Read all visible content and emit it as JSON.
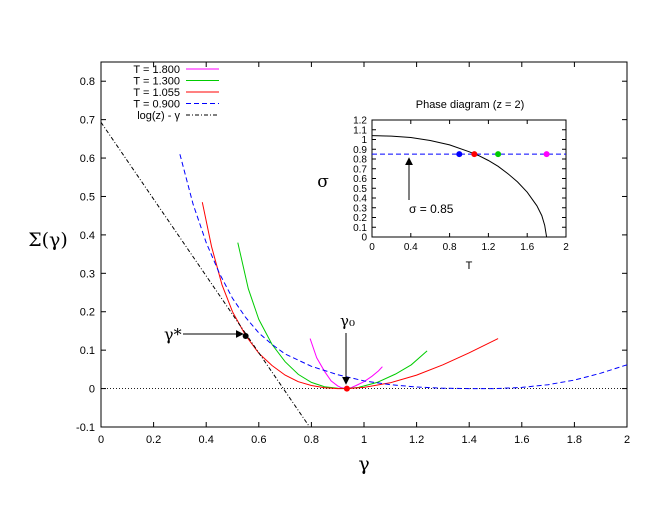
{
  "chart_data": [
    {
      "type": "line",
      "title": "",
      "xlabel": "γ",
      "ylabel": "Σ(γ)",
      "xlim": [
        0,
        2
      ],
      "ylim": [
        -0.1,
        0.85
      ],
      "x_ticks": [
        "0",
        "0.2",
        "0.4",
        "0.6",
        "0.8",
        "1",
        "1.2",
        "1.4",
        "1.6",
        "1.8",
        "2"
      ],
      "y_ticks": [
        "-0.1",
        "0",
        "0.1",
        "0.2",
        "0.3",
        "0.4",
        "0.5",
        "0.6",
        "0.7",
        "0.8"
      ],
      "legend_position": "top-left",
      "series": [
        {
          "name": "T = 1.800",
          "color": "#ff00ff",
          "style": "solid",
          "x": [
            0.795,
            0.82,
            0.85,
            0.875,
            0.9,
            0.915,
            0.935,
            0.95,
            0.97,
            1.0,
            1.03,
            1.055,
            1.07
          ],
          "y": [
            0.13,
            0.08,
            0.045,
            0.02,
            0.007,
            0.002,
            0.0,
            0.002,
            0.008,
            0.018,
            0.032,
            0.046,
            0.057
          ]
        },
        {
          "name": "T = 1.300",
          "color": "#00cc00",
          "style": "solid",
          "x": [
            0.52,
            0.56,
            0.6,
            0.65,
            0.7,
            0.75,
            0.8,
            0.85,
            0.9,
            0.935,
            0.98,
            1.05,
            1.12,
            1.18,
            1.24
          ],
          "y": [
            0.38,
            0.26,
            0.18,
            0.115,
            0.07,
            0.037,
            0.016,
            0.005,
            0.001,
            0.0,
            0.003,
            0.016,
            0.038,
            0.062,
            0.098
          ]
        },
        {
          "name": "T = 1.055",
          "color": "#ff0000",
          "style": "solid",
          "x": [
            0.385,
            0.42,
            0.46,
            0.5,
            0.55,
            0.6,
            0.65,
            0.7,
            0.75,
            0.8,
            0.85,
            0.9,
            0.935,
            1.0,
            1.1,
            1.2,
            1.3,
            1.4,
            1.51
          ],
          "y": [
            0.485,
            0.37,
            0.27,
            0.2,
            0.138,
            0.092,
            0.06,
            0.035,
            0.018,
            0.008,
            0.002,
            0.0,
            0.0,
            0.003,
            0.015,
            0.035,
            0.062,
            0.093,
            0.13
          ]
        },
        {
          "name": "T = 0.900",
          "color": "#0000ff",
          "style": "dashed",
          "x": [
            0.3,
            0.35,
            0.4,
            0.45,
            0.5,
            0.55,
            0.6,
            0.65,
            0.7,
            0.8,
            0.9,
            1.0,
            1.1,
            1.2,
            1.3,
            1.4,
            1.5,
            1.6,
            1.7,
            1.8,
            1.9,
            2.0
          ],
          "y": [
            0.61,
            0.48,
            0.38,
            0.3,
            0.235,
            0.185,
            0.145,
            0.115,
            0.09,
            0.058,
            0.036,
            0.02,
            0.01,
            0.004,
            0.001,
            0.0,
            0.0,
            0.003,
            0.01,
            0.022,
            0.04,
            0.062
          ]
        },
        {
          "name": "log(z) - γ",
          "color": "#000000",
          "style": "dash-dot",
          "x": [
            0.0,
            0.79
          ],
          "y": [
            0.693,
            -0.097
          ]
        }
      ],
      "reference_lines": [
        {
          "y": 0,
          "color": "#000000",
          "style": "dotted"
        }
      ],
      "points": [
        {
          "label": "γ*",
          "x": 0.55,
          "y": 0.137,
          "color": "#000000"
        },
        {
          "label": "γ₀",
          "x": 0.935,
          "y": 0.0,
          "color": "#ff0000"
        }
      ],
      "annotations": [
        "γ*",
        "γ₀"
      ]
    },
    {
      "type": "line",
      "title": "Phase diagram (z = 2)",
      "xlabel": "T",
      "ylabel": "σ",
      "xlim": [
        0,
        2
      ],
      "ylim": [
        0,
        1.2
      ],
      "x_ticks": [
        "0",
        "0.4",
        "0.8",
        "1.2",
        "1.6",
        "2"
      ],
      "y_ticks": [
        "0",
        "0.1",
        "0.2",
        "0.3",
        "0.4",
        "0.5",
        "0.6",
        "0.7",
        "0.8",
        "0.9",
        "1",
        "1.1",
        "1.2"
      ],
      "series": [
        {
          "name": "",
          "color": "#000000",
          "style": "solid",
          "x": [
            0.0,
            0.2,
            0.4,
            0.6,
            0.8,
            1.0,
            1.1,
            1.2,
            1.3,
            1.4,
            1.5,
            1.6,
            1.7,
            1.75,
            1.78,
            1.8
          ],
          "y": [
            1.04,
            1.035,
            1.02,
            0.99,
            0.945,
            0.875,
            0.835,
            0.785,
            0.725,
            0.65,
            0.565,
            0.46,
            0.32,
            0.22,
            0.12,
            0.0
          ]
        }
      ],
      "reference_lines": [
        {
          "y": 0.85,
          "color": "#0000ff",
          "style": "dashed"
        }
      ],
      "points": [
        {
          "x": 0.9,
          "y": 0.85,
          "color": "#0000ff"
        },
        {
          "x": 1.055,
          "y": 0.85,
          "color": "#ff0000"
        },
        {
          "x": 1.3,
          "y": 0.85,
          "color": "#00cc00"
        },
        {
          "x": 1.8,
          "y": 0.85,
          "color": "#ff00ff"
        }
      ],
      "annotations": [
        "σ = 0.85"
      ]
    }
  ]
}
